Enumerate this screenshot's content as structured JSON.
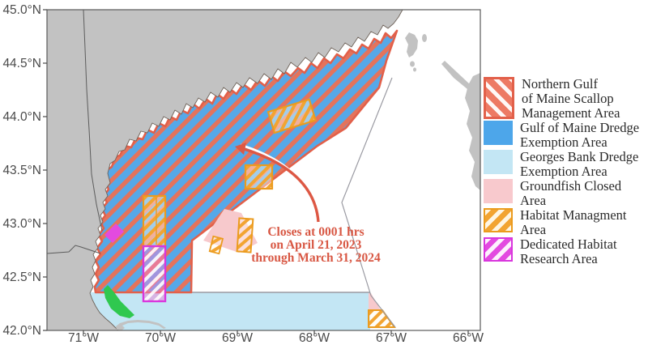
{
  "palette": {
    "land": "#c2c2c2",
    "ocean": "#ffffff",
    "ngom_blue": "#56a8e8",
    "ngom_stripe_salmon": "#e4735c",
    "ngom_border": "#e2604a",
    "georges_bank_lightblue": "#c3e6f4",
    "groundfish_pink": "#f7c9cc",
    "habitat_orange": "#f2a432",
    "research_magenta": "#e34ae0",
    "green_area": "#2fc84f",
    "annotation_red": "#d85743",
    "boundary_line_gray": "#9a9aa2"
  },
  "map": {
    "x_axis": {
      "tick_labels": [
        "71°W",
        "70°W",
        "69°W",
        "68°W",
        "67°W",
        "66°W"
      ]
    },
    "y_axis": {
      "tick_labels": [
        "45.0°N",
        "44.5°N",
        "44.0°N",
        "43.5°N",
        "43.0°N",
        "42.5°N",
        "42.0°N"
      ]
    },
    "annotation": {
      "lines": [
        "Closes at 0001 hrs",
        "on April 21, 2023",
        "through March 31, 2024"
      ]
    }
  },
  "legend": {
    "items": [
      {
        "swatch": "ngom",
        "lines": [
          "Northern Gulf",
          "of Maine Scallop",
          "Management Area"
        ]
      },
      {
        "swatch": "blue",
        "lines": [
          "Gulf of Maine Dredge",
          "Exemption Area"
        ]
      },
      {
        "swatch": "lightblue",
        "lines": [
          "Georges Bank Dredge",
          "Exemption Area"
        ]
      },
      {
        "swatch": "pink",
        "lines": [
          "Groundfish Closed",
          "Area"
        ]
      },
      {
        "swatch": "orangekey",
        "lines": [
          "Habitat Managment",
          "Area"
        ]
      },
      {
        "swatch": "magentakey",
        "lines": [
          "Dedicated Habitat",
          "Research Area"
        ]
      }
    ]
  }
}
